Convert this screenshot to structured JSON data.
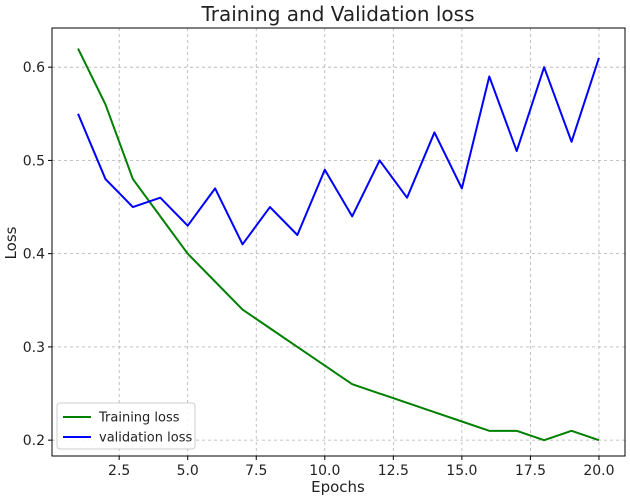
{
  "chart_data": {
    "type": "line",
    "title": "Training and Validation loss",
    "xlabel": "Epochs",
    "ylabel": "Loss",
    "xlim": [
      0.05,
      20.95
    ],
    "ylim": [
      0.183,
      0.642
    ],
    "xticks": [
      2.5,
      5.0,
      7.5,
      10.0,
      12.5,
      15.0,
      17.5,
      20.0
    ],
    "xtick_labels": [
      "2.5",
      "5.0",
      "7.5",
      "10.0",
      "12.5",
      "15.0",
      "17.5",
      "20.0"
    ],
    "yticks": [
      0.2,
      0.3,
      0.4,
      0.5,
      0.6
    ],
    "ytick_labels": [
      "0.2",
      "0.3",
      "0.4",
      "0.5",
      "0.6"
    ],
    "grid": true,
    "legend_position": "lower-left",
    "x": [
      1,
      2,
      3,
      4,
      5,
      6,
      7,
      8,
      9,
      10,
      11,
      12,
      13,
      14,
      15,
      16,
      17,
      18,
      19,
      20
    ],
    "series": [
      {
        "name": "Training loss",
        "color": "#008000",
        "values": [
          0.62,
          0.56,
          0.48,
          0.44,
          0.4,
          0.37,
          0.34,
          0.32,
          0.3,
          0.28,
          0.26,
          0.25,
          0.24,
          0.23,
          0.22,
          0.21,
          0.21,
          0.2,
          0.21,
          0.2
        ]
      },
      {
        "name": "validation loss",
        "color": "#0000ff",
        "values": [
          0.55,
          0.48,
          0.45,
          0.46,
          0.43,
          0.47,
          0.41,
          0.45,
          0.42,
          0.49,
          0.44,
          0.5,
          0.46,
          0.53,
          0.47,
          0.59,
          0.51,
          0.6,
          0.52,
          0.61
        ]
      }
    ]
  }
}
